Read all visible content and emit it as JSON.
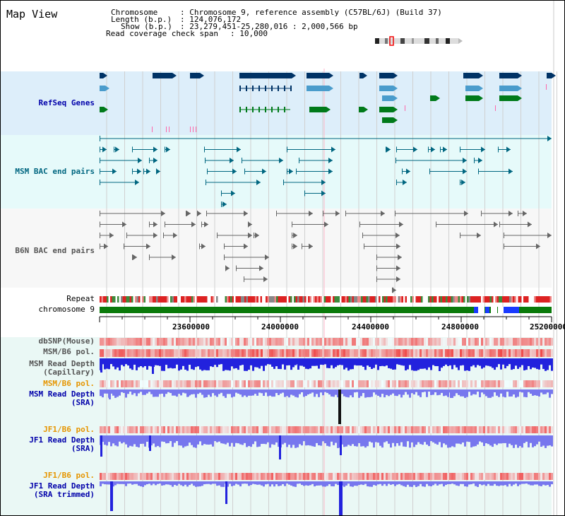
{
  "app": {
    "title": "Map View"
  },
  "header": {
    "chromosome_key": "Chromosome",
    "chromosome_val": ": Chromosome 9, reference assembly (C57BL/6J) (Build 37)",
    "length_key": "Length (b.p.)",
    "length_val": ": 124,076,172",
    "show_key": "Show (b.p.)",
    "show_val": ": 23,279,451-25,280,016 : 2,000,566 bp",
    "coverage_key": "Read coverage check span",
    "coverage_val": ": 10,000"
  },
  "tracks": {
    "refseq": "RefSeq Genes",
    "msm_bac": "MSM BAC end pairs",
    "b6n_bac": "B6N BAC end pairs",
    "repeat": "Repeat",
    "chromosome": "chromosome 9",
    "dbsnp": "dbSNP(Mouse)",
    "msm_b6_pol": "MSM/B6 pol.",
    "msm_depth_cap_1": "MSM Read Depth",
    "msm_depth_cap_2": "(Capillary)",
    "msm_b6_pol_2": "MSM/B6 pol.",
    "msm_depth_sra_1": "MSM Read Depth",
    "msm_depth_sra_2": "(SRA)",
    "jf1_b6_pol": "JF1/B6 pol.",
    "jf1_depth_sra_1": "JF1 Read Depth",
    "jf1_depth_sra_2": "(SRA)",
    "jf1_b6_pol_2": "JF1/B6 pol.",
    "jf1_depth_trim_1": "JF1 Read Depth",
    "jf1_depth_trim_2": "(SRA trimmed)"
  },
  "axis": {
    "ticks": [
      "23600000",
      "24000000",
      "24400000",
      "24800000",
      "25200000"
    ]
  },
  "colors": {
    "refseq_bg": "#ddeefa",
    "msm_bac_bg": "#e6fafa",
    "b6n_bac_bg": "#f7f7f7",
    "depth_bg": "#eaf8f5",
    "navy": "#003366",
    "teal": "#006680",
    "gene_light": "#4a9ccc",
    "gene_green": "#007a1a",
    "chrom_green": "#0a7a0a",
    "label_blue": "#0000aa",
    "label_teal": "#006680",
    "label_gray": "#555555",
    "label_orange": "#e69500",
    "pol_red": "#ee3333",
    "depth_blue": "#2222dd",
    "depth_light": "#7777ee"
  }
}
